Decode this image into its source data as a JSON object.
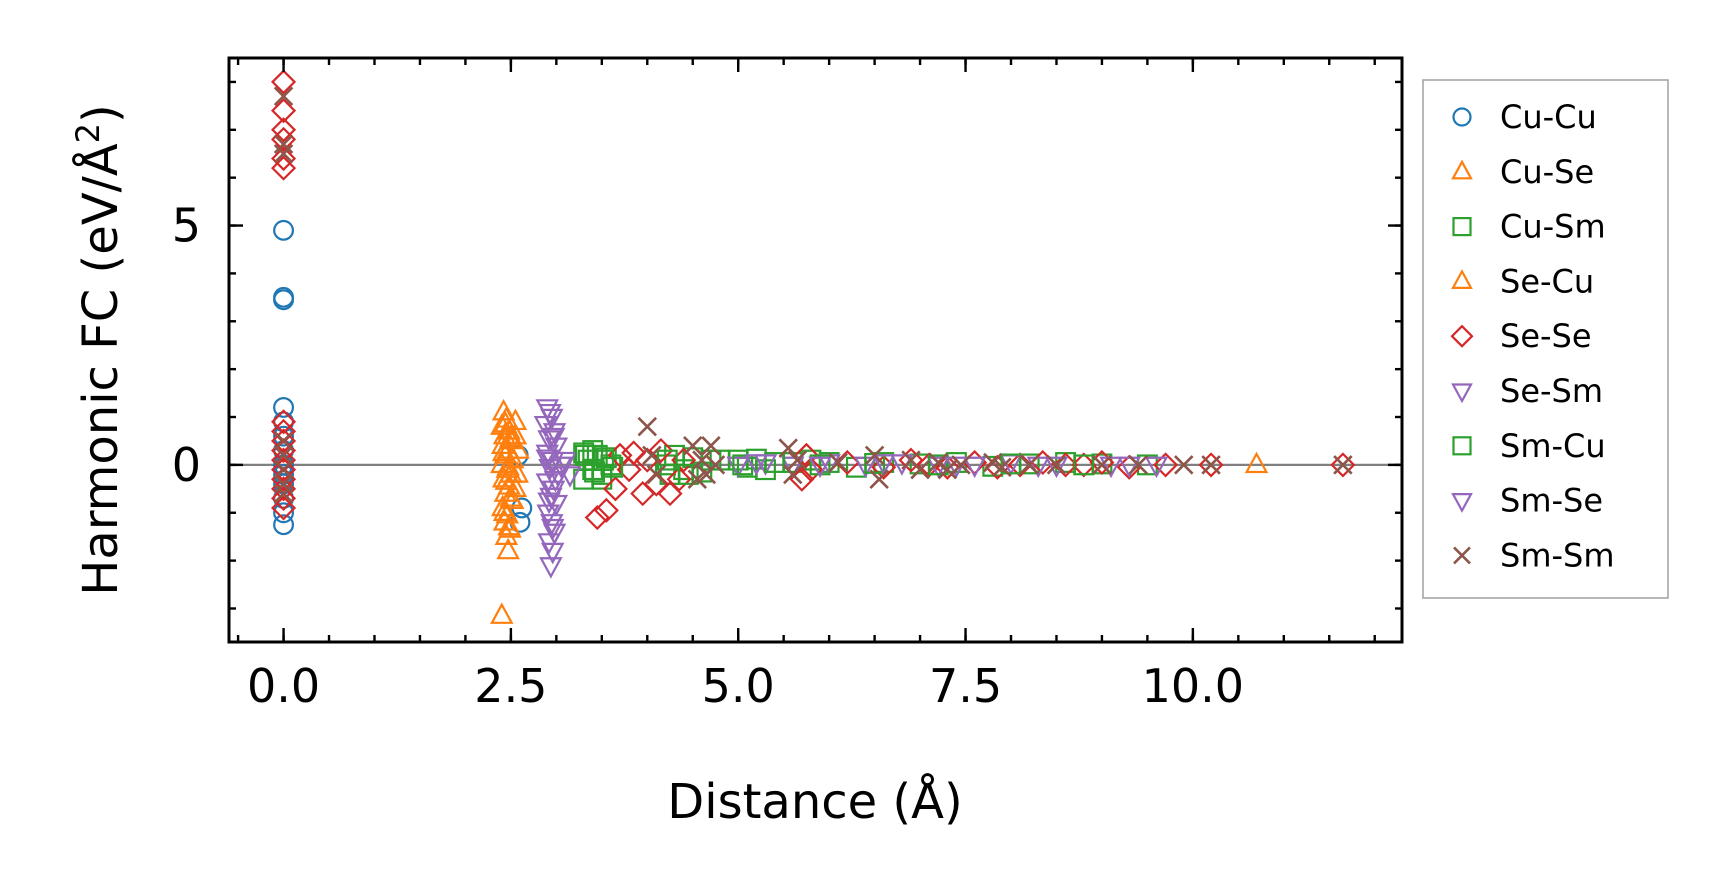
{
  "chart_data": {
    "type": "scatter",
    "xlabel": "Distance (Å)",
    "ylabel_main": "Harmonic FC (eV/Å",
    "ylabel_sup": "2",
    "ylabel_end": ")",
    "xlim": [
      -0.6,
      12.3
    ],
    "ylim": [
      -3.7,
      8.5
    ],
    "x_ticks": [
      0.0,
      2.5,
      5.0,
      7.5,
      10.0
    ],
    "x_tick_labels": [
      "0.0",
      "2.5",
      "5.0",
      "7.5",
      "10.0"
    ],
    "y_ticks": [
      0,
      5
    ],
    "y_tick_labels": [
      "0",
      "5"
    ],
    "x_minor_step": 0.5,
    "y_minor_step": 1,
    "zero_line": true,
    "legend_position": "outside-right",
    "series": [
      {
        "name": "Cu-Cu",
        "marker": "circle",
        "color": "#1f77b4",
        "points": [
          [
            0,
            4.9
          ],
          [
            0,
            3.5
          ],
          [
            0,
            3.45
          ],
          [
            0,
            1.2
          ],
          [
            0,
            0.9
          ],
          [
            0,
            0.6
          ],
          [
            0,
            0.3
          ],
          [
            0,
            0.0
          ],
          [
            0,
            -0.2
          ],
          [
            0,
            -0.4
          ],
          [
            0,
            -0.7
          ],
          [
            0,
            -1.0
          ],
          [
            0,
            -1.25
          ],
          [
            2.6,
            -1.2
          ],
          [
            2.62,
            -0.9
          ],
          [
            2.58,
            0.2
          ]
        ]
      },
      {
        "name": "Cu-Se",
        "marker": "triangle-up",
        "color": "#ff7f0e",
        "points": [
          [
            2.42,
            1.1
          ],
          [
            2.45,
            0.95
          ],
          [
            2.4,
            0.8
          ],
          [
            2.48,
            0.7
          ],
          [
            2.43,
            0.6
          ],
          [
            2.5,
            0.5
          ],
          [
            2.41,
            0.4
          ],
          [
            2.47,
            0.3
          ],
          [
            2.44,
            0.2
          ],
          [
            2.52,
            0.1
          ],
          [
            2.4,
            0.0
          ],
          [
            2.46,
            -0.1
          ],
          [
            2.5,
            -0.2
          ],
          [
            2.42,
            -0.3
          ],
          [
            2.48,
            -0.45
          ],
          [
            2.44,
            -0.6
          ],
          [
            2.52,
            -0.75
          ],
          [
            2.41,
            -0.9
          ],
          [
            2.46,
            -1.05
          ],
          [
            2.43,
            -1.2
          ],
          [
            2.49,
            -1.35
          ],
          [
            2.45,
            -1.5
          ],
          [
            2.47,
            -1.8
          ],
          [
            2.4,
            -3.15
          ],
          [
            2.55,
            0.6
          ],
          [
            2.58,
            0.3
          ],
          [
            2.55,
            -0.5
          ],
          [
            10.7,
            0.0
          ]
        ]
      },
      {
        "name": "Cu-Sm",
        "marker": "square",
        "color": "#2ca02c",
        "points": [
          [
            3.3,
            0.25
          ],
          [
            3.35,
            0.1
          ],
          [
            3.4,
            -0.1
          ],
          [
            3.45,
            0.2
          ],
          [
            3.5,
            -0.2
          ],
          [
            3.55,
            0.15
          ],
          [
            3.6,
            0.0
          ],
          [
            3.3,
            -0.3
          ],
          [
            3.4,
            0.3
          ],
          [
            3.5,
            -0.3
          ],
          [
            4.2,
            0.0
          ],
          [
            4.25,
            -0.2
          ],
          [
            4.3,
            0.2
          ],
          [
            4.4,
            -0.1
          ],
          [
            4.5,
            0.15
          ],
          [
            4.6,
            -0.15
          ],
          [
            4.8,
            0.1
          ],
          [
            5.0,
            0.1
          ],
          [
            5.1,
            -0.05
          ],
          [
            5.2,
            0.12
          ],
          [
            5.3,
            -0.1
          ],
          [
            5.6,
            0.05
          ],
          [
            5.8,
            0.1
          ],
          [
            6.0,
            0.05
          ],
          [
            6.3,
            -0.05
          ],
          [
            6.6,
            0.05
          ],
          [
            7.0,
            0.02
          ],
          [
            7.4,
            0.05
          ],
          [
            7.8,
            -0.03
          ],
          [
            8.2,
            0.02
          ],
          [
            8.6,
            0.05
          ],
          [
            9.0,
            0.02
          ],
          [
            9.5,
            0.0
          ]
        ]
      },
      {
        "name": "Se-Cu",
        "marker": "triangle-up",
        "color": "#ff7f0e",
        "points": [
          [
            2.44,
            0.85
          ],
          [
            2.5,
            0.55
          ],
          [
            2.42,
            0.25
          ],
          [
            2.47,
            -0.05
          ],
          [
            2.45,
            -0.35
          ],
          [
            2.5,
            -0.7
          ],
          [
            2.43,
            -1.0
          ],
          [
            2.48,
            -1.3
          ],
          [
            2.55,
            0.9
          ],
          [
            2.57,
            -0.2
          ]
        ]
      },
      {
        "name": "Se-Se",
        "marker": "diamond",
        "color": "#d62728",
        "points": [
          [
            0,
            8.0
          ],
          [
            0,
            7.4
          ],
          [
            0,
            7.0
          ],
          [
            0,
            6.8
          ],
          [
            0,
            6.4
          ],
          [
            0,
            6.2
          ],
          [
            0,
            0.9
          ],
          [
            0,
            0.7
          ],
          [
            0,
            0.5
          ],
          [
            0,
            0.3
          ],
          [
            0,
            0.1
          ],
          [
            0,
            -0.1
          ],
          [
            0,
            -0.3
          ],
          [
            0,
            -0.5
          ],
          [
            0,
            -0.7
          ],
          [
            0,
            -0.9
          ],
          [
            3.45,
            -1.1
          ],
          [
            3.55,
            -0.95
          ],
          [
            3.65,
            -0.5
          ],
          [
            3.7,
            0.2
          ],
          [
            3.8,
            -0.1
          ],
          [
            3.85,
            0.25
          ],
          [
            3.95,
            -0.6
          ],
          [
            4.0,
            0.1
          ],
          [
            4.1,
            -0.4
          ],
          [
            4.15,
            0.3
          ],
          [
            4.25,
            -0.6
          ],
          [
            4.35,
            -0.3
          ],
          [
            4.4,
            0.1
          ],
          [
            5.7,
            -0.3
          ],
          [
            5.75,
            0.2
          ],
          [
            5.8,
            -0.1
          ],
          [
            6.2,
            0.05
          ],
          [
            6.6,
            -0.05
          ],
          [
            6.9,
            0.1
          ],
          [
            7.1,
            0.0
          ],
          [
            7.3,
            -0.05
          ],
          [
            7.6,
            0.05
          ],
          [
            7.85,
            -0.05
          ],
          [
            8.1,
            0.0
          ],
          [
            8.35,
            0.05
          ],
          [
            8.6,
            0.0
          ],
          [
            8.8,
            0.0
          ],
          [
            9.0,
            0.05
          ],
          [
            9.3,
            -0.05
          ],
          [
            9.7,
            0.0
          ],
          [
            10.2,
            0.0
          ],
          [
            11.65,
            0.0
          ]
        ]
      },
      {
        "name": "Se-Sm",
        "marker": "triangle-down",
        "color": "#9467bd",
        "points": [
          [
            2.9,
            1.2
          ],
          [
            2.95,
            1.0
          ],
          [
            2.88,
            0.85
          ],
          [
            2.98,
            0.7
          ],
          [
            2.92,
            0.55
          ],
          [
            3.0,
            0.4
          ],
          [
            2.9,
            0.25
          ],
          [
            2.96,
            0.1
          ],
          [
            2.93,
            -0.05
          ],
          [
            3.02,
            -0.2
          ],
          [
            2.9,
            -0.35
          ],
          [
            2.97,
            -0.5
          ],
          [
            2.94,
            -0.65
          ],
          [
            3.0,
            -0.8
          ],
          [
            2.91,
            -1.0
          ],
          [
            2.95,
            -1.2
          ],
          [
            2.98,
            -1.4
          ],
          [
            2.92,
            -1.6
          ],
          [
            2.96,
            -1.8
          ],
          [
            2.94,
            -2.1
          ],
          [
            3.1,
            0.1
          ],
          [
            3.15,
            -0.2
          ],
          [
            5.0,
            0.0
          ],
          [
            5.3,
            0.05
          ],
          [
            5.6,
            0.0
          ],
          [
            6.0,
            0.05
          ],
          [
            6.4,
            0.0
          ],
          [
            6.8,
            0.05
          ],
          [
            7.2,
            0.0
          ],
          [
            7.6,
            0.0
          ],
          [
            8.0,
            0.05
          ],
          [
            8.5,
            0.0
          ],
          [
            9.1,
            0.0
          ],
          [
            9.6,
            0.0
          ]
        ]
      },
      {
        "name": "Sm-Cu",
        "marker": "square",
        "color": "#2ca02c",
        "points": [
          [
            3.32,
            0.2
          ],
          [
            3.42,
            -0.15
          ],
          [
            3.52,
            0.1
          ],
          [
            3.62,
            -0.05
          ],
          [
            4.22,
            0.1
          ],
          [
            4.45,
            -0.2
          ],
          [
            4.7,
            0.1
          ],
          [
            5.05,
            0.0
          ],
          [
            5.4,
            0.05
          ],
          [
            5.9,
            0.0
          ],
          [
            6.5,
            0.03
          ],
          [
            7.2,
            0.0
          ],
          [
            8.0,
            0.02
          ],
          [
            8.8,
            0.0
          ]
        ]
      },
      {
        "name": "Sm-Se",
        "marker": "triangle-down",
        "color": "#9467bd",
        "points": [
          [
            2.93,
            1.1
          ],
          [
            2.97,
            0.6
          ],
          [
            2.9,
            0.15
          ],
          [
            2.99,
            -0.3
          ],
          [
            2.92,
            -0.75
          ],
          [
            2.96,
            -1.3
          ],
          [
            3.05,
            0.0
          ],
          [
            5.2,
            0.05
          ],
          [
            5.9,
            0.0
          ],
          [
            6.6,
            0.05
          ],
          [
            7.4,
            0.0
          ],
          [
            8.3,
            0.0
          ],
          [
            9.3,
            0.0
          ]
        ]
      },
      {
        "name": "Sm-Sm",
        "marker": "x",
        "color": "#8c564b",
        "points": [
          [
            0,
            7.7
          ],
          [
            0,
            6.7
          ],
          [
            0,
            6.5
          ],
          [
            0,
            0.5
          ],
          [
            0,
            0.2
          ],
          [
            0,
            -0.1
          ],
          [
            0,
            -0.4
          ],
          [
            0,
            -0.6
          ],
          [
            4.0,
            0.8
          ],
          [
            4.05,
            0.2
          ],
          [
            4.1,
            -0.2
          ],
          [
            4.5,
            0.4
          ],
          [
            4.55,
            -0.3
          ],
          [
            4.6,
            0.1
          ],
          [
            4.65,
            -0.2
          ],
          [
            4.7,
            0.4
          ],
          [
            4.75,
            0.0
          ],
          [
            5.55,
            0.35
          ],
          [
            5.6,
            -0.2
          ],
          [
            5.65,
            0.1
          ],
          [
            6.1,
            0.05
          ],
          [
            6.5,
            0.2
          ],
          [
            6.55,
            -0.3
          ],
          [
            6.9,
            0.1
          ],
          [
            7.0,
            -0.1
          ],
          [
            7.2,
            0.05
          ],
          [
            7.3,
            -0.1
          ],
          [
            7.45,
            0.0
          ],
          [
            7.8,
            0.05
          ],
          [
            7.9,
            -0.05
          ],
          [
            8.2,
            0.0
          ],
          [
            8.5,
            0.0
          ],
          [
            9.0,
            0.0
          ],
          [
            9.4,
            0.0
          ],
          [
            9.9,
            0.0
          ],
          [
            10.2,
            0.0
          ],
          [
            11.65,
            0.0
          ]
        ]
      }
    ]
  }
}
